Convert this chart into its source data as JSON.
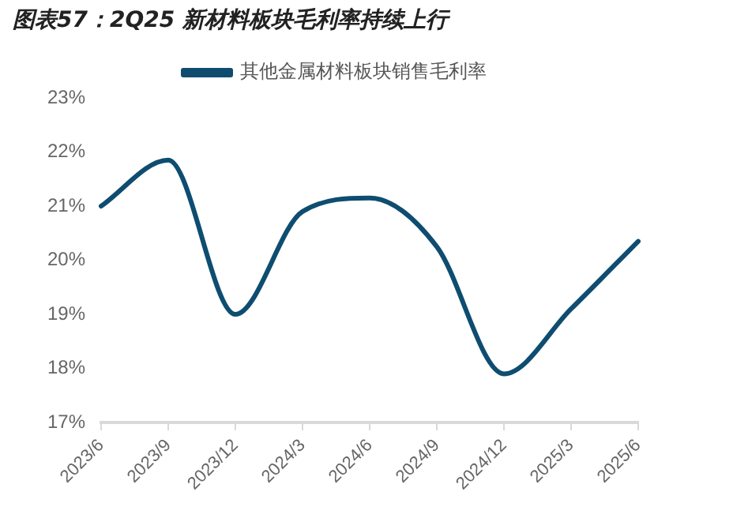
{
  "chart_data": {
    "type": "line",
    "title": "图表57：2Q25 新材料板块毛利率持续上行",
    "categories": [
      "2023/6",
      "2023/9",
      "2023/12",
      "2024/3",
      "2024/6",
      "2024/9",
      "2024/12",
      "2025/3",
      "2025/6"
    ],
    "series": [
      {
        "name": "其他金属材料板块销售毛利率",
        "color": "#0e4d70",
        "values": [
          21.0,
          21.85,
          19.0,
          20.9,
          21.15,
          20.25,
          17.9,
          19.1,
          20.35
        ]
      }
    ],
    "ylim": [
      17,
      23
    ],
    "yticks": [
      {
        "value": 17,
        "label": "17%"
      },
      {
        "value": 18,
        "label": "18%"
      },
      {
        "value": 19,
        "label": "19%"
      },
      {
        "value": 20,
        "label": "20%"
      },
      {
        "value": 21,
        "label": "21%"
      },
      {
        "value": 22,
        "label": "22%"
      },
      {
        "value": 23,
        "label": "23%"
      }
    ],
    "grid": false,
    "legend": "top",
    "marker": "none",
    "line_style": "solid"
  }
}
